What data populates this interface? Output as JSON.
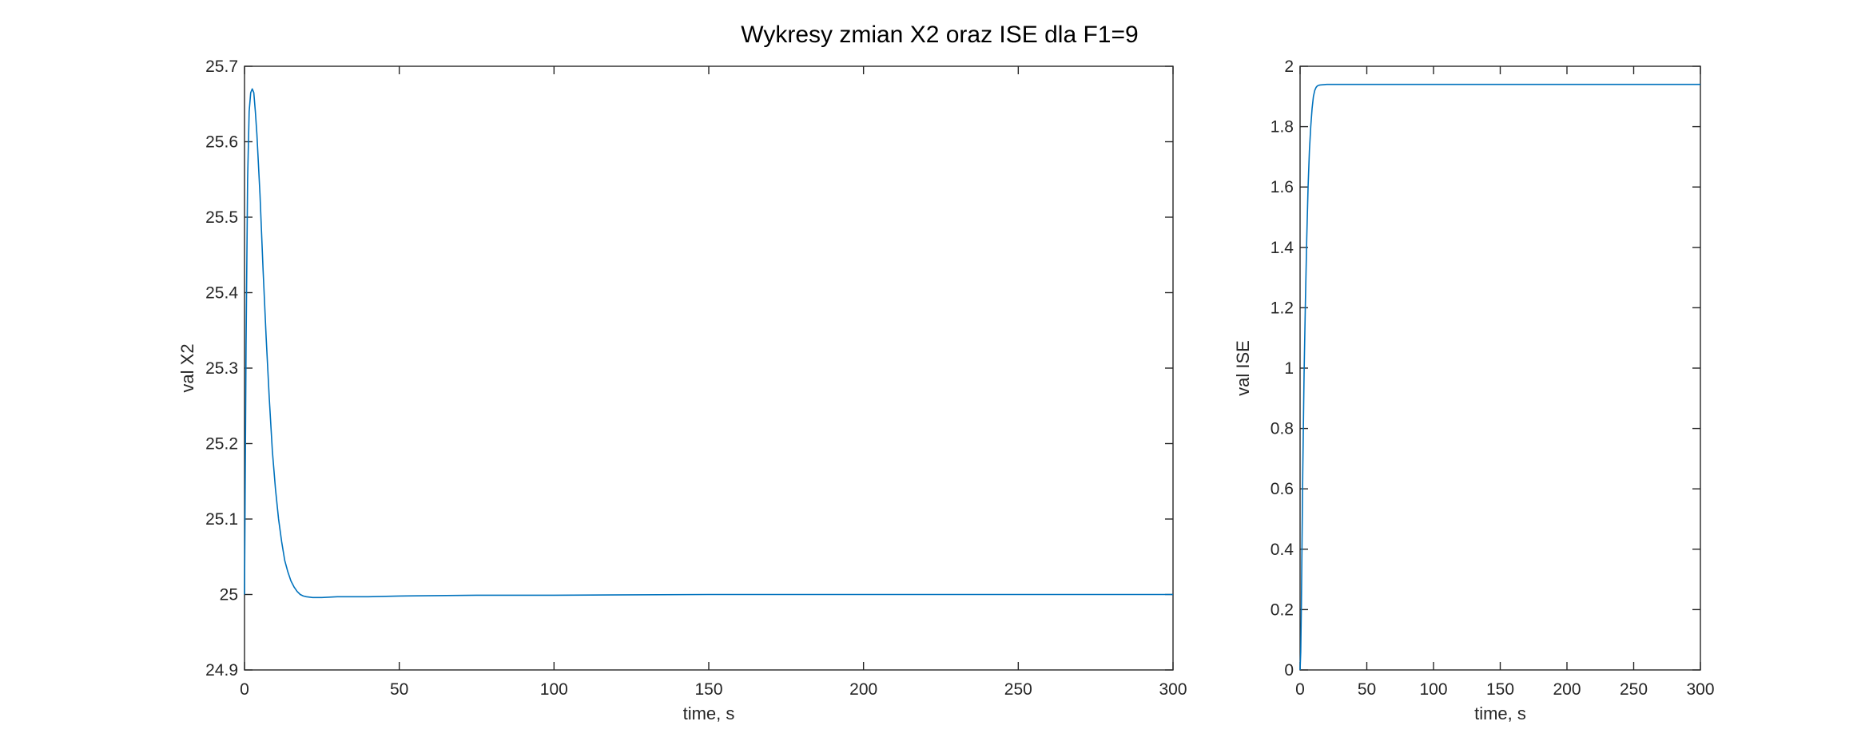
{
  "figure": {
    "title": "Wykresy zmian X2 oraz ISE dla F1=9"
  },
  "chart_data": [
    {
      "type": "line",
      "xlabel": "time, s",
      "ylabel": "val X2",
      "xlim": [
        0,
        300
      ],
      "ylim": [
        24.9,
        25.7
      ],
      "xticks": [
        0,
        50,
        100,
        150,
        200,
        250,
        300
      ],
      "yticks": [
        24.9,
        25.0,
        25.1,
        25.2,
        25.3,
        25.4,
        25.5,
        25.6,
        25.7
      ],
      "ytick_labels": [
        "24.9",
        "25",
        "25.1",
        "25.2",
        "25.3",
        "25.4",
        "25.5",
        "25.6",
        "25.7"
      ],
      "grid": false,
      "color": "#0072BD",
      "series": [
        {
          "x": [
            0,
            0.5,
            1,
            1.5,
            2,
            2.5,
            3,
            3.5,
            4,
            5,
            6,
            7,
            8,
            9,
            10,
            11,
            12,
            13,
            14,
            15,
            16,
            17,
            18,
            19,
            20,
            22,
            25,
            30,
            40,
            50,
            75,
            100,
            150,
            200,
            250,
            300
          ],
          "y": [
            25.0,
            25.33,
            25.55,
            25.64,
            25.665,
            25.67,
            25.665,
            25.64,
            25.61,
            25.53,
            25.43,
            25.34,
            25.26,
            25.19,
            25.14,
            25.1,
            25.07,
            25.045,
            25.03,
            25.018,
            25.01,
            25.004,
            25.0,
            24.998,
            24.997,
            24.996,
            24.996,
            24.997,
            24.997,
            24.998,
            24.999,
            24.999,
            25.0,
            25.0,
            25.0,
            25.0
          ]
        }
      ]
    },
    {
      "type": "line",
      "xlabel": "time, s",
      "ylabel": "val ISE",
      "xlim": [
        0,
        300
      ],
      "ylim": [
        0,
        2
      ],
      "xticks": [
        0,
        50,
        100,
        150,
        200,
        250,
        300
      ],
      "yticks": [
        0,
        0.2,
        0.4,
        0.6,
        0.8,
        1.0,
        1.2,
        1.4,
        1.6,
        1.8,
        2.0
      ],
      "ytick_labels": [
        "0",
        "0.2",
        "0.4",
        "0.6",
        "0.8",
        "1",
        "1.2",
        "1.4",
        "1.6",
        "1.8",
        "2"
      ],
      "grid": false,
      "color": "#0072BD",
      "series": [
        {
          "x": [
            0,
            0.5,
            1,
            1.5,
            2,
            3,
            4,
            5,
            6,
            7,
            8,
            9,
            10,
            11,
            12,
            13,
            14,
            15,
            20,
            30,
            50,
            100,
            150,
            200,
            250,
            300
          ],
          "y": [
            0,
            0.06,
            0.22,
            0.44,
            0.65,
            0.98,
            1.22,
            1.43,
            1.6,
            1.72,
            1.8,
            1.86,
            1.9,
            1.92,
            1.93,
            1.935,
            1.937,
            1.938,
            1.94,
            1.94,
            1.94,
            1.94,
            1.94,
            1.94,
            1.94,
            1.94
          ]
        }
      ]
    }
  ]
}
